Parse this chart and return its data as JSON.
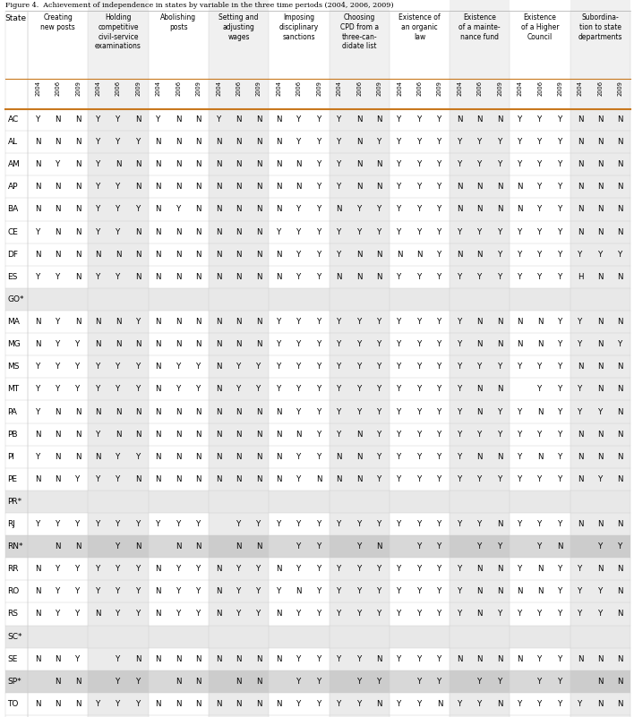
{
  "title": "Figure 4.  Achievement of independence in states by variable in the three time periods (2004, 2006, 2009)",
  "col_groups": [
    {
      "label": "Creating\nnew posts",
      "span": 3
    },
    {
      "label": "Holding\ncompetitive\ncivil-service\nexaminations",
      "span": 3
    },
    {
      "label": "Abolishing\nposts",
      "span": 3
    },
    {
      "label": "Setting and\nadjusting\nwages",
      "span": 3
    },
    {
      "label": "Imposing\ndisciplinary\nsanctions",
      "span": 3
    },
    {
      "label": "Choosing\nCPD from a\nthree-can-\ndidate list",
      "span": 3
    },
    {
      "label": "Existence of\nan organic\nlaw",
      "span": 3
    },
    {
      "label": "Existence\nof a mainte-\nnance fund",
      "span": 3
    },
    {
      "label": "Existence\nof a Higher\nCouncil",
      "span": 3
    },
    {
      "label": "Subordina-\ntion to state\ndepartments",
      "span": 3
    }
  ],
  "year_labels": [
    "2004",
    "2006",
    "2009",
    "2004",
    "2006",
    "2009",
    "2004",
    "2006",
    "2009",
    "2004",
    "2006",
    "2009",
    "2004",
    "2006",
    "2009",
    "2004",
    "2006",
    "2009",
    "2004",
    "2006",
    "2009",
    "2004",
    "2006",
    "2009",
    "2004",
    "2006",
    "2009",
    "2004",
    "2006",
    "2009"
  ],
  "rows": [
    {
      "state": "AC",
      "values": [
        "Y",
        "N",
        "N",
        "Y",
        "Y",
        "N",
        "Y",
        "N",
        "N",
        "Y",
        "N",
        "N",
        "N",
        "Y",
        "Y",
        "Y",
        "N",
        "N",
        "Y",
        "Y",
        "Y",
        "N",
        "N",
        "N",
        "Y",
        "Y",
        "Y",
        "N",
        "N",
        "N"
      ],
      "bg": "white"
    },
    {
      "state": "AL",
      "values": [
        "N",
        "N",
        "N",
        "Y",
        "Y",
        "Y",
        "N",
        "N",
        "N",
        "N",
        "N",
        "N",
        "N",
        "Y",
        "Y",
        "Y",
        "N",
        "Y",
        "Y",
        "Y",
        "Y",
        "Y",
        "Y",
        "Y",
        "Y",
        "Y",
        "Y",
        "N",
        "N",
        "N"
      ],
      "bg": "white"
    },
    {
      "state": "AM",
      "values": [
        "N",
        "Y",
        "N",
        "Y",
        "N",
        "N",
        "N",
        "N",
        "N",
        "N",
        "N",
        "N",
        "N",
        "N",
        "Y",
        "Y",
        "N",
        "N",
        "Y",
        "Y",
        "Y",
        "Y",
        "Y",
        "Y",
        "Y",
        "Y",
        "Y",
        "N",
        "N",
        "N"
      ],
      "bg": "white"
    },
    {
      "state": "AP",
      "values": [
        "N",
        "N",
        "N",
        "Y",
        "Y",
        "N",
        "N",
        "N",
        "N",
        "N",
        "N",
        "N",
        "N",
        "N",
        "Y",
        "Y",
        "N",
        "N",
        "Y",
        "Y",
        "Y",
        "N",
        "N",
        "N",
        "N",
        "Y",
        "Y",
        "N",
        "N",
        "N"
      ],
      "bg": "white"
    },
    {
      "state": "BA",
      "values": [
        "N",
        "N",
        "N",
        "Y",
        "Y",
        "Y",
        "N",
        "Y",
        "N",
        "N",
        "N",
        "N",
        "N",
        "Y",
        "Y",
        "N",
        "Y",
        "Y",
        "Y",
        "Y",
        "Y",
        "N",
        "N",
        "N",
        "N",
        "Y",
        "Y",
        "N",
        "N",
        "N"
      ],
      "bg": "white"
    },
    {
      "state": "CE",
      "values": [
        "Y",
        "N",
        "N",
        "Y",
        "Y",
        "N",
        "N",
        "N",
        "N",
        "N",
        "N",
        "N",
        "Y",
        "Y",
        "Y",
        "Y",
        "Y",
        "Y",
        "Y",
        "Y",
        "Y",
        "Y",
        "Y",
        "Y",
        "Y",
        "Y",
        "Y",
        "N",
        "N",
        "N"
      ],
      "bg": "white"
    },
    {
      "state": "DF",
      "values": [
        "N",
        "N",
        "N",
        "N",
        "N",
        "N",
        "N",
        "N",
        "N",
        "N",
        "N",
        "N",
        "N",
        "Y",
        "Y",
        "Y",
        "N",
        "N",
        "N",
        "N",
        "Y",
        "N",
        "N",
        "Y",
        "Y",
        "Y",
        "Y",
        "Y",
        "Y",
        "Y"
      ],
      "bg": "white"
    },
    {
      "state": "ES",
      "values": [
        "Y",
        "Y",
        "N",
        "Y",
        "Y",
        "N",
        "N",
        "N",
        "N",
        "N",
        "N",
        "N",
        "N",
        "Y",
        "Y",
        "N",
        "N",
        "N",
        "Y",
        "Y",
        "Y",
        "Y",
        "Y",
        "Y",
        "Y",
        "Y",
        "Y",
        "H",
        "N",
        "N"
      ],
      "bg": "white"
    },
    {
      "state": "GO*",
      "values": [],
      "bg": "grey",
      "separator": true
    },
    {
      "state": "MA",
      "values": [
        "N",
        "Y",
        "N",
        "N",
        "N",
        "Y",
        "N",
        "N",
        "N",
        "N",
        "N",
        "N",
        "Y",
        "Y",
        "Y",
        "Y",
        "Y",
        "Y",
        "Y",
        "Y",
        "Y",
        "Y",
        "N",
        "N",
        "N",
        "N",
        "Y",
        "Y",
        "N",
        "N"
      ],
      "bg": "white"
    },
    {
      "state": "MG",
      "values": [
        "N",
        "Y",
        "Y",
        "N",
        "N",
        "N",
        "N",
        "N",
        "N",
        "N",
        "N",
        "N",
        "Y",
        "Y",
        "Y",
        "Y",
        "Y",
        "Y",
        "Y",
        "Y",
        "Y",
        "Y",
        "N",
        "N",
        "N",
        "N",
        "Y",
        "Y",
        "N",
        "Y"
      ],
      "bg": "white"
    },
    {
      "state": "MS",
      "values": [
        "Y",
        "Y",
        "Y",
        "Y",
        "Y",
        "Y",
        "N",
        "Y",
        "Y",
        "N",
        "Y",
        "Y",
        "Y",
        "Y",
        "Y",
        "Y",
        "Y",
        "Y",
        "Y",
        "Y",
        "Y",
        "Y",
        "Y",
        "Y",
        "Y",
        "Y",
        "Y",
        "N",
        "N",
        "N"
      ],
      "bg": "white"
    },
    {
      "state": "MT",
      "values": [
        "Y",
        "Y",
        "Y",
        "Y",
        "Y",
        "Y",
        "N",
        "Y",
        "Y",
        "N",
        "Y",
        "Y",
        "Y",
        "Y",
        "Y",
        "Y",
        "Y",
        "Y",
        "Y",
        "Y",
        "Y",
        "Y",
        "N",
        "N",
        " ",
        "Y",
        "Y",
        "Y",
        "N",
        "N"
      ],
      "bg": "white"
    },
    {
      "state": "PA",
      "values": [
        "Y",
        "N",
        "N",
        "N",
        "N",
        "N",
        "N",
        "N",
        "N",
        "N",
        "N",
        "N",
        "N",
        "Y",
        "Y",
        "Y",
        "Y",
        "Y",
        "Y",
        "Y",
        "Y",
        "Y",
        "N",
        "Y",
        "Y",
        "N",
        "Y",
        "Y",
        "Y",
        "N"
      ],
      "bg": "white"
    },
    {
      "state": "PB",
      "values": [
        "N",
        "N",
        "N",
        "Y",
        "N",
        "N",
        "N",
        "N",
        "N",
        "N",
        "N",
        "N",
        "N",
        "N",
        "Y",
        "Y",
        "N",
        "Y",
        "Y",
        "Y",
        "Y",
        "Y",
        "Y",
        "Y",
        "Y",
        "Y",
        "Y",
        "N",
        "N",
        "N"
      ],
      "bg": "white"
    },
    {
      "state": "PI",
      "values": [
        "Y",
        "N",
        "N",
        "N",
        "Y",
        "Y",
        "N",
        "N",
        "N",
        "N",
        "N",
        "N",
        "N",
        "Y",
        "Y",
        "N",
        "N",
        "Y",
        "Y",
        "Y",
        "Y",
        "Y",
        "N",
        "N",
        "Y",
        "N",
        "Y",
        "N",
        "N",
        "N"
      ],
      "bg": "white"
    },
    {
      "state": "PE",
      "values": [
        "N",
        "N",
        "Y",
        "Y",
        "Y",
        "N",
        "N",
        "N",
        "N",
        "N",
        "N",
        "N",
        "N",
        "Y",
        "N",
        "N",
        "N",
        "Y",
        "Y",
        "Y",
        "Y",
        "Y",
        "Y",
        "Y",
        "Y",
        "Y",
        "Y",
        "N",
        "Y",
        "N"
      ],
      "bg": "white"
    },
    {
      "state": "PR*",
      "values": [],
      "bg": "grey",
      "separator": true
    },
    {
      "state": "RJ",
      "values": [
        "Y",
        "Y",
        "Y",
        "Y",
        "Y",
        "Y",
        "Y",
        "Y",
        "Y",
        " ",
        "Y",
        "Y",
        "Y",
        "Y",
        "Y",
        "Y",
        "Y",
        "Y",
        "Y",
        "Y",
        "Y",
        "Y",
        "Y",
        "N",
        "Y",
        "Y",
        "Y",
        "N",
        "N",
        "N"
      ],
      "bg": "white"
    },
    {
      "state": "RN*",
      "values": [
        " ",
        "N",
        "N",
        " ",
        "Y",
        "N",
        " ",
        "N",
        "N",
        " ",
        "N",
        "N",
        " ",
        "Y",
        "Y",
        " ",
        "Y",
        "N",
        " ",
        "Y",
        "Y",
        " ",
        "Y",
        "Y",
        " ",
        "Y",
        "N",
        " ",
        "Y",
        "Y"
      ],
      "bg": "grey2"
    },
    {
      "state": "RR",
      "values": [
        "N",
        "Y",
        "Y",
        "Y",
        "Y",
        "Y",
        "N",
        "Y",
        "Y",
        "N",
        "Y",
        "Y",
        "N",
        "Y",
        "Y",
        "Y",
        "Y",
        "Y",
        "Y",
        "Y",
        "Y",
        "Y",
        "N",
        "N",
        "Y",
        "N",
        "Y",
        "Y",
        "N",
        "N"
      ],
      "bg": "white"
    },
    {
      "state": "RO",
      "values": [
        "N",
        "Y",
        "Y",
        "Y",
        "Y",
        "Y",
        "N",
        "Y",
        "Y",
        "N",
        "Y",
        "Y",
        "Y",
        "N",
        "Y",
        "Y",
        "Y",
        "Y",
        "Y",
        "Y",
        "Y",
        "Y",
        "N",
        "N",
        "N",
        "N",
        "Y",
        "Y",
        "Y",
        "N"
      ],
      "bg": "white"
    },
    {
      "state": "RS",
      "values": [
        "N",
        "Y",
        "Y",
        "N",
        "Y",
        "Y",
        "N",
        "Y",
        "Y",
        "N",
        "Y",
        "Y",
        "N",
        "Y",
        "Y",
        "Y",
        "Y",
        "Y",
        "Y",
        "Y",
        "Y",
        "Y",
        "N",
        "Y",
        "Y",
        "Y",
        "Y",
        "Y",
        "Y",
        "N"
      ],
      "bg": "white"
    },
    {
      "state": "SC*",
      "values": [],
      "bg": "grey",
      "separator": true
    },
    {
      "state": "SE",
      "values": [
        "N",
        "N",
        "Y",
        " ",
        "Y",
        "N",
        "N",
        "N",
        "N",
        "N",
        "N",
        "N",
        "N",
        "Y",
        "Y",
        "Y",
        "Y",
        "N",
        "Y",
        "Y",
        "Y",
        "N",
        "N",
        "N",
        "N",
        "Y",
        "Y",
        "N",
        "N",
        "N"
      ],
      "bg": "white"
    },
    {
      "state": "SP*",
      "values": [
        " ",
        "N",
        "N",
        " ",
        "Y",
        "Y",
        " ",
        "N",
        "N",
        " ",
        "N",
        "N",
        " ",
        "Y",
        "Y",
        " ",
        "Y",
        "Y",
        " ",
        "Y",
        "Y",
        " ",
        "Y",
        "Y",
        " ",
        "Y",
        "Y",
        " ",
        "N",
        "N"
      ],
      "bg": "grey2"
    },
    {
      "state": "TO",
      "values": [
        "N",
        "N",
        "N",
        "Y",
        "Y",
        "Y",
        "N",
        "N",
        "N",
        "N",
        "N",
        "N",
        "N",
        "Y",
        "Y",
        "Y",
        "Y",
        "N",
        "Y",
        "Y",
        "N",
        "Y",
        "Y",
        "N",
        "Y",
        "Y",
        "Y",
        "Y",
        "N",
        "N"
      ],
      "bg": "white"
    }
  ],
  "bg_white": "#ffffff",
  "bg_grey": "#e8e8e8",
  "bg_grey2": "#d8d8d8",
  "stripe_even": "#f5f5f5",
  "stripe_even_on_grey2": "#cccccc",
  "orange_color": "#c8781e",
  "header_font_size": 5.5,
  "cell_font_size": 6.2,
  "state_font_size": 6.5,
  "year_font_size": 4.8,
  "title_font_size": 5.8
}
